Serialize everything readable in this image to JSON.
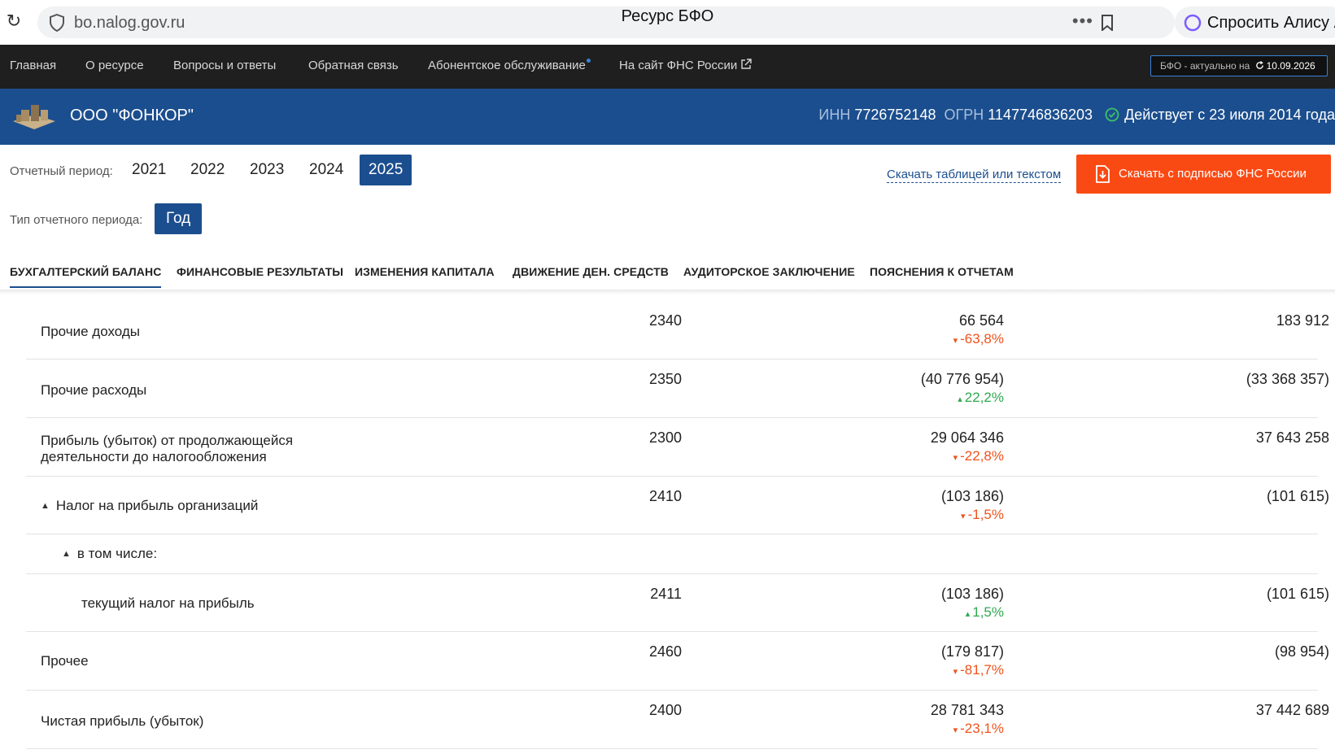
{
  "browser": {
    "url": "bo.nalog.gov.ru",
    "title": "Ресурс БФО",
    "alice_label": "Спросить Алису А"
  },
  "topnav": {
    "items": [
      "Главная",
      "О ресурсе",
      "Вопросы и ответы",
      "Обратная связь",
      "Абонентское обслуживание",
      "На сайт ФНС России"
    ],
    "actual_label": "БФО - актуально на",
    "actual_date": "10.09.2026"
  },
  "company": {
    "name": "ООО \"ФОНКОР\"",
    "inn_label": "ИНН",
    "inn": "7726752148",
    "ogrn_label": "ОГРН",
    "ogrn": "1147746836203",
    "status": "Действует с 23 июля 2014 года"
  },
  "filters": {
    "period_label": "Отчетный период:",
    "years": [
      "2021",
      "2022",
      "2023",
      "2024",
      "2025"
    ],
    "active_year": "2025",
    "type_label": "Тип отчетного периода:",
    "type_value": "Год",
    "download_link": "Скачать таблицей или текстом",
    "download_button": "Скачать с подписью ФНС России"
  },
  "tabs": [
    "БУХГАЛТЕРСКИЙ БАЛАНС",
    "ФИНАНСОВЫЕ РЕЗУЛЬТАТЫ",
    "ИЗМЕНЕНИЯ КАПИТАЛА",
    "ДВИЖЕНИЕ ДЕН. СРЕДСТВ",
    "АУДИТОРСКОЕ ЗАКЛЮЧЕНИЕ",
    "ПОЯСНЕНИЯ К ОТЧЕТАМ"
  ],
  "rows": [
    {
      "name": "Прочие доходы",
      "code": "2340",
      "current": "66 564",
      "delta": "-63,8%",
      "delta_dir": "down",
      "previous": "183 912"
    },
    {
      "name": "Прочие расходы",
      "code": "2350",
      "current": "(40 776 954)",
      "delta": "22,2%",
      "delta_dir": "up",
      "previous": "(33 368 357)"
    },
    {
      "name_line1": "Прибыль (убыток) от продолжающейся",
      "name_line2": "деятельности до налогообложения",
      "code": "2300",
      "current": "29 064 346",
      "delta": "-22,8%",
      "delta_dir": "down",
      "previous": "37 643 258"
    },
    {
      "name": "Налог на прибыль организаций",
      "code": "2410",
      "current": "(103 186)",
      "delta": "-1,5%",
      "delta_dir": "down",
      "previous": "(101 615)"
    },
    {
      "name": "в том числе:"
    },
    {
      "name": "текущий налог на прибыль",
      "code": "2411",
      "current": "(103 186)",
      "delta": "1,5%",
      "delta_dir": "up",
      "previous": "(101 615)"
    },
    {
      "name": "Прочее",
      "code": "2460",
      "current": "(179 817)",
      "delta": "-81,7%",
      "delta_dir": "down",
      "previous": "(98 954)"
    },
    {
      "name": "Чистая прибыль (убыток)",
      "code": "2400",
      "current": "28 781 343",
      "delta": "-23,1%",
      "delta_dir": "down",
      "previous": "37 442 689"
    }
  ]
}
